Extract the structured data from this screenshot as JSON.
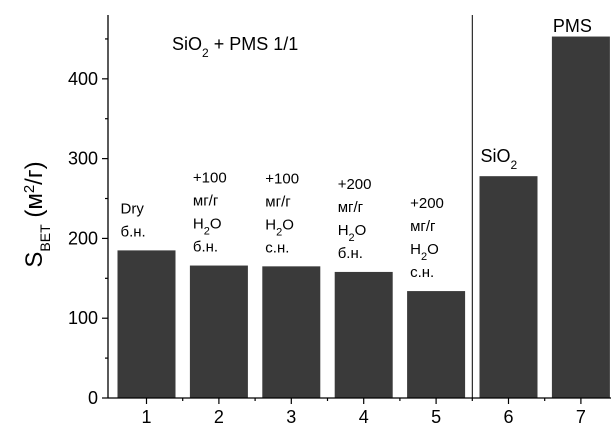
{
  "chart_data": {
    "type": "bar",
    "categories": [
      "1",
      "2",
      "3",
      "4",
      "5",
      "6",
      "7"
    ],
    "values": [
      185,
      166,
      165,
      158,
      134,
      278,
      453
    ],
    "ylim": [
      0,
      480
    ],
    "yticks": [
      0,
      100,
      200,
      300,
      400
    ],
    "ylabel": {
      "main": "S",
      "sub": "BET",
      "unit_open": " (м",
      "unit_sup": "2",
      "unit_close": "/г)"
    },
    "title": {
      "text": "SiO",
      "sub": "2",
      "rest": " + PMS 1/1"
    },
    "bar_color": "#3a3a3a",
    "grid": false,
    "annotations": [
      {
        "bar": 0,
        "lines": [
          "Dry",
          "б.н."
        ]
      },
      {
        "bar": 1,
        "lines": [
          "+100",
          "мг/г",
          "H2O",
          "б.н."
        ]
      },
      {
        "bar": 2,
        "lines": [
          "+100",
          "мг/г",
          "H2O",
          "с.н."
        ]
      },
      {
        "bar": 3,
        "lines": [
          "+200",
          "мг/г",
          "H2O",
          "б.н."
        ]
      },
      {
        "bar": 4,
        "lines": [
          "+200",
          "мг/г",
          "H2O",
          "с.н."
        ]
      }
    ],
    "bar_labels": [
      {
        "bar": 5,
        "text": "SiO",
        "sub": "2"
      },
      {
        "bar": 6,
        "text": "PMS",
        "sub": ""
      }
    ],
    "separator_after_bar": 4
  }
}
